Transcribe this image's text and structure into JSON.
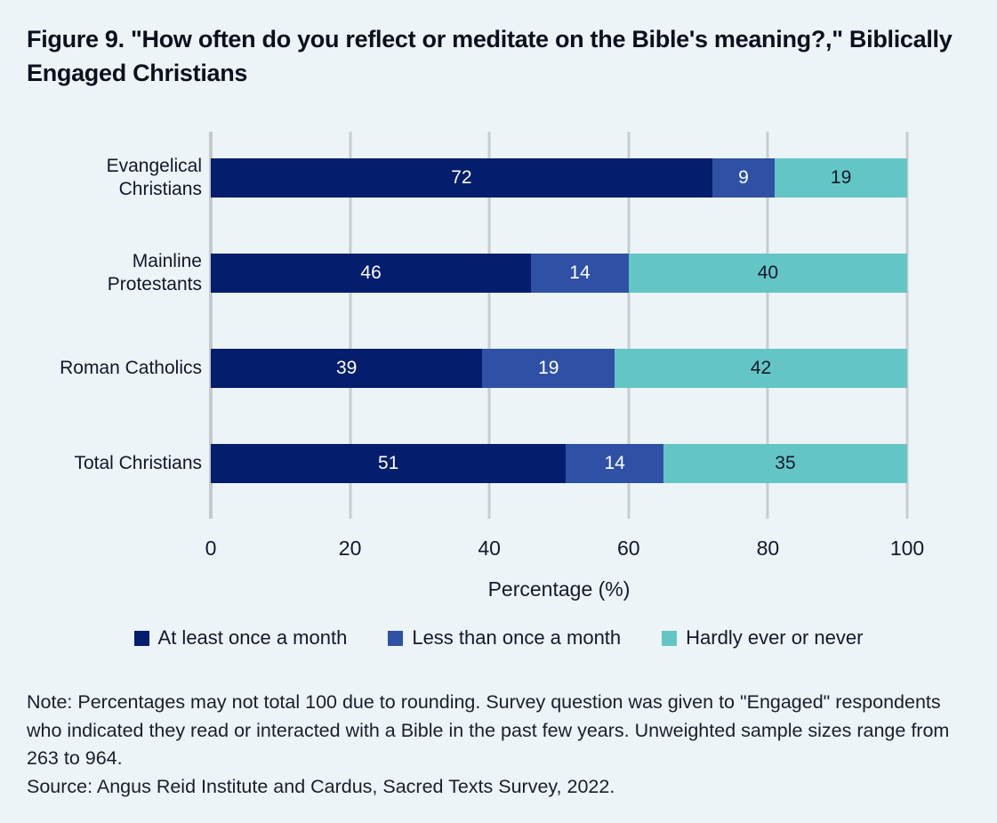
{
  "title": "Figure 9. \"How often do you reflect or meditate on the Bible's meaning?,\" Biblically Engaged Christians",
  "chart_data": {
    "type": "bar",
    "orientation": "horizontal",
    "stacked": true,
    "categories": [
      "Evangelical Christians",
      "Mainline Protestants",
      "Roman Catholics",
      "Total Christians"
    ],
    "series": [
      {
        "name": "At least once a month",
        "color": "#041d6c",
        "label_color": "#ffffff",
        "values": [
          72,
          46,
          39,
          51
        ]
      },
      {
        "name": "Less than once a month",
        "color": "#2e51a5",
        "label_color": "#ffffff",
        "values": [
          9,
          14,
          19,
          14
        ]
      },
      {
        "name": "Hardly ever or never",
        "color": "#63c6c5",
        "label_color": "#16182b",
        "values": [
          19,
          40,
          42,
          35
        ]
      }
    ],
    "xlabel": "Percentage (%)",
    "x_ticks": [
      0,
      20,
      40,
      60,
      80,
      100
    ],
    "xlim": [
      0,
      100
    ],
    "grid": true,
    "legend_position": "bottom"
  },
  "note": "Note: Percentages may not total 100 due to rounding. Survey question was given to \"Engaged\" respondents who indicated they read or interacted with a Bible in the past few years. Unweighted sample sizes range from 263 to 964.",
  "source": "Source: Angus Reid Institute and Cardus, Sacred Texts Survey, 2022.",
  "colors": {
    "background": "#ecf4f7",
    "gridline": "#c9cdce",
    "title_text": "#0c0f1d",
    "body_text": "#1b1d2b"
  }
}
